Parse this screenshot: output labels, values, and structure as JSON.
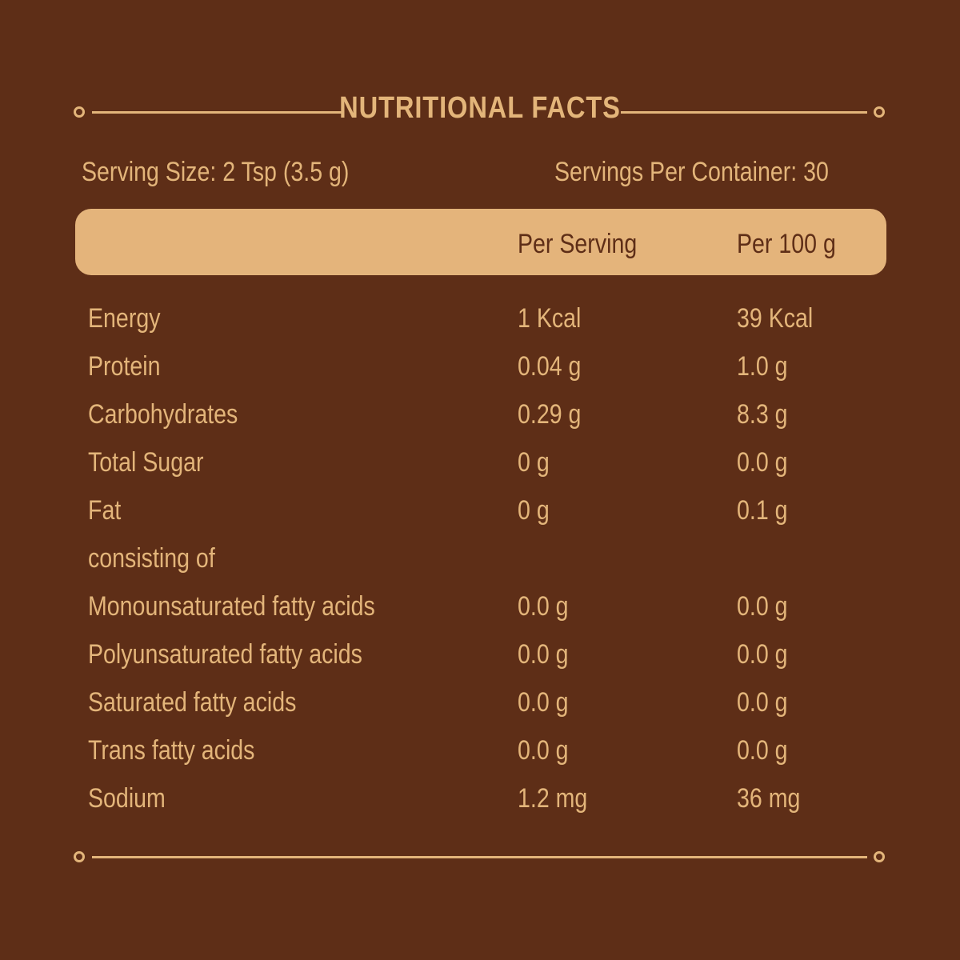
{
  "title": "NUTRITIONAL FACTS",
  "serving_size": "Serving Size: 2 Tsp (3.5 g)",
  "servings_per_container": "Servings Per Container: 30",
  "columns": {
    "per_serving": "Per Serving",
    "per_100g": "Per 100 g"
  },
  "rows": [
    {
      "name": "Energy",
      "per_serving": "1 Kcal",
      "per_100g": "39 Kcal"
    },
    {
      "name": "Protein",
      "per_serving": "0.04 g",
      "per_100g": "1.0 g"
    },
    {
      "name": "Carbohydrates",
      "per_serving": "0.29 g",
      "per_100g": "8.3 g"
    },
    {
      "name": "Total Sugar",
      "per_serving": "0 g",
      "per_100g": "0.0 g"
    },
    {
      "name": "Fat",
      "per_serving": "0 g",
      "per_100g": "0.1 g"
    },
    {
      "name": "consisting of",
      "per_serving": "",
      "per_100g": ""
    },
    {
      "name": "Monounsaturated fatty acids",
      "per_serving": "0.0 g",
      "per_100g": "0.0 g"
    },
    {
      "name": "Polyunsaturated fatty acids",
      "per_serving": "0.0 g",
      "per_100g": "0.0 g"
    },
    {
      "name": "Saturated fatty acids",
      "per_serving": "0.0 g",
      "per_100g": "0.0 g"
    },
    {
      "name": "Trans fatty acids",
      "per_serving": "0.0 g",
      "per_100g": "0.0 g"
    },
    {
      "name": "Sodium",
      "per_serving": "1.2 mg",
      "per_100g": "36 mg"
    }
  ],
  "colors": {
    "background": "#5e2e17",
    "accent": "#e3b57a"
  }
}
